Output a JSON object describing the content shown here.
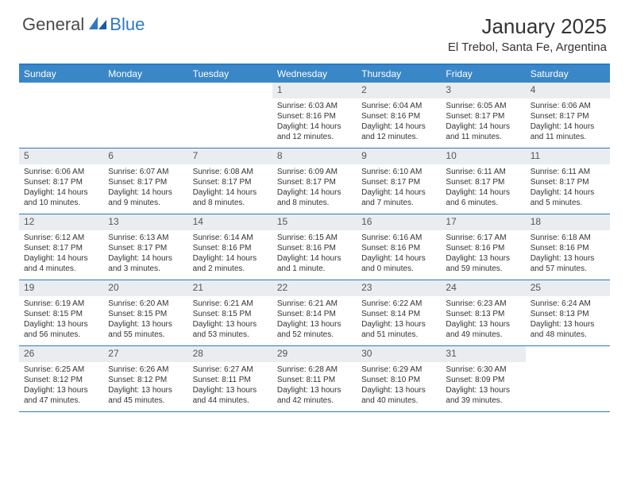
{
  "logo": {
    "general": "General",
    "blue": "Blue"
  },
  "title": "January 2025",
  "location": "El Trebol, Santa Fe, Argentina",
  "colors": {
    "header_bg": "#3a87c8",
    "border": "#2f78c3",
    "daynum_bg": "#e9edf0",
    "text": "#333333"
  },
  "day_labels": [
    "Sunday",
    "Monday",
    "Tuesday",
    "Wednesday",
    "Thursday",
    "Friday",
    "Saturday"
  ],
  "weeks": [
    [
      {
        "n": "",
        "sr": "",
        "ss": "",
        "dl": ""
      },
      {
        "n": "",
        "sr": "",
        "ss": "",
        "dl": ""
      },
      {
        "n": "",
        "sr": "",
        "ss": "",
        "dl": ""
      },
      {
        "n": "1",
        "sr": "Sunrise: 6:03 AM",
        "ss": "Sunset: 8:16 PM",
        "dl": "Daylight: 14 hours and 12 minutes."
      },
      {
        "n": "2",
        "sr": "Sunrise: 6:04 AM",
        "ss": "Sunset: 8:16 PM",
        "dl": "Daylight: 14 hours and 12 minutes."
      },
      {
        "n": "3",
        "sr": "Sunrise: 6:05 AM",
        "ss": "Sunset: 8:17 PM",
        "dl": "Daylight: 14 hours and 11 minutes."
      },
      {
        "n": "4",
        "sr": "Sunrise: 6:06 AM",
        "ss": "Sunset: 8:17 PM",
        "dl": "Daylight: 14 hours and 11 minutes."
      }
    ],
    [
      {
        "n": "5",
        "sr": "Sunrise: 6:06 AM",
        "ss": "Sunset: 8:17 PM",
        "dl": "Daylight: 14 hours and 10 minutes."
      },
      {
        "n": "6",
        "sr": "Sunrise: 6:07 AM",
        "ss": "Sunset: 8:17 PM",
        "dl": "Daylight: 14 hours and 9 minutes."
      },
      {
        "n": "7",
        "sr": "Sunrise: 6:08 AM",
        "ss": "Sunset: 8:17 PM",
        "dl": "Daylight: 14 hours and 8 minutes."
      },
      {
        "n": "8",
        "sr": "Sunrise: 6:09 AM",
        "ss": "Sunset: 8:17 PM",
        "dl": "Daylight: 14 hours and 8 minutes."
      },
      {
        "n": "9",
        "sr": "Sunrise: 6:10 AM",
        "ss": "Sunset: 8:17 PM",
        "dl": "Daylight: 14 hours and 7 minutes."
      },
      {
        "n": "10",
        "sr": "Sunrise: 6:11 AM",
        "ss": "Sunset: 8:17 PM",
        "dl": "Daylight: 14 hours and 6 minutes."
      },
      {
        "n": "11",
        "sr": "Sunrise: 6:11 AM",
        "ss": "Sunset: 8:17 PM",
        "dl": "Daylight: 14 hours and 5 minutes."
      }
    ],
    [
      {
        "n": "12",
        "sr": "Sunrise: 6:12 AM",
        "ss": "Sunset: 8:17 PM",
        "dl": "Daylight: 14 hours and 4 minutes."
      },
      {
        "n": "13",
        "sr": "Sunrise: 6:13 AM",
        "ss": "Sunset: 8:17 PM",
        "dl": "Daylight: 14 hours and 3 minutes."
      },
      {
        "n": "14",
        "sr": "Sunrise: 6:14 AM",
        "ss": "Sunset: 8:16 PM",
        "dl": "Daylight: 14 hours and 2 minutes."
      },
      {
        "n": "15",
        "sr": "Sunrise: 6:15 AM",
        "ss": "Sunset: 8:16 PM",
        "dl": "Daylight: 14 hours and 1 minute."
      },
      {
        "n": "16",
        "sr": "Sunrise: 6:16 AM",
        "ss": "Sunset: 8:16 PM",
        "dl": "Daylight: 14 hours and 0 minutes."
      },
      {
        "n": "17",
        "sr": "Sunrise: 6:17 AM",
        "ss": "Sunset: 8:16 PM",
        "dl": "Daylight: 13 hours and 59 minutes."
      },
      {
        "n": "18",
        "sr": "Sunrise: 6:18 AM",
        "ss": "Sunset: 8:16 PM",
        "dl": "Daylight: 13 hours and 57 minutes."
      }
    ],
    [
      {
        "n": "19",
        "sr": "Sunrise: 6:19 AM",
        "ss": "Sunset: 8:15 PM",
        "dl": "Daylight: 13 hours and 56 minutes."
      },
      {
        "n": "20",
        "sr": "Sunrise: 6:20 AM",
        "ss": "Sunset: 8:15 PM",
        "dl": "Daylight: 13 hours and 55 minutes."
      },
      {
        "n": "21",
        "sr": "Sunrise: 6:21 AM",
        "ss": "Sunset: 8:15 PM",
        "dl": "Daylight: 13 hours and 53 minutes."
      },
      {
        "n": "22",
        "sr": "Sunrise: 6:21 AM",
        "ss": "Sunset: 8:14 PM",
        "dl": "Daylight: 13 hours and 52 minutes."
      },
      {
        "n": "23",
        "sr": "Sunrise: 6:22 AM",
        "ss": "Sunset: 8:14 PM",
        "dl": "Daylight: 13 hours and 51 minutes."
      },
      {
        "n": "24",
        "sr": "Sunrise: 6:23 AM",
        "ss": "Sunset: 8:13 PM",
        "dl": "Daylight: 13 hours and 49 minutes."
      },
      {
        "n": "25",
        "sr": "Sunrise: 6:24 AM",
        "ss": "Sunset: 8:13 PM",
        "dl": "Daylight: 13 hours and 48 minutes."
      }
    ],
    [
      {
        "n": "26",
        "sr": "Sunrise: 6:25 AM",
        "ss": "Sunset: 8:12 PM",
        "dl": "Daylight: 13 hours and 47 minutes."
      },
      {
        "n": "27",
        "sr": "Sunrise: 6:26 AM",
        "ss": "Sunset: 8:12 PM",
        "dl": "Daylight: 13 hours and 45 minutes."
      },
      {
        "n": "28",
        "sr": "Sunrise: 6:27 AM",
        "ss": "Sunset: 8:11 PM",
        "dl": "Daylight: 13 hours and 44 minutes."
      },
      {
        "n": "29",
        "sr": "Sunrise: 6:28 AM",
        "ss": "Sunset: 8:11 PM",
        "dl": "Daylight: 13 hours and 42 minutes."
      },
      {
        "n": "30",
        "sr": "Sunrise: 6:29 AM",
        "ss": "Sunset: 8:10 PM",
        "dl": "Daylight: 13 hours and 40 minutes."
      },
      {
        "n": "31",
        "sr": "Sunrise: 6:30 AM",
        "ss": "Sunset: 8:09 PM",
        "dl": "Daylight: 13 hours and 39 minutes."
      },
      {
        "n": "",
        "sr": "",
        "ss": "",
        "dl": ""
      }
    ]
  ]
}
